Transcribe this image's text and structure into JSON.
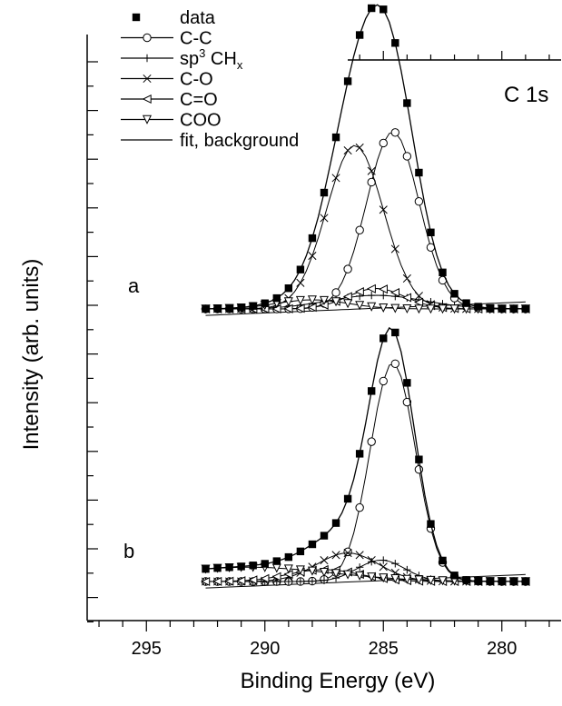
{
  "chart_data": {
    "type": "line",
    "region_label": "C 1s",
    "xlabel": "Binding Energy (eV)",
    "ylabel": "Intensity (arb. units)",
    "x_reversed": true,
    "xlim": [
      297.5,
      277.5
    ],
    "x_ticks": [
      {
        "value": 295,
        "label": "295"
      },
      {
        "value": 290,
        "label": "290"
      },
      {
        "value": 285,
        "label": "285"
      },
      {
        "value": 280,
        "label": "280"
      }
    ],
    "legend_position": "top-left",
    "legend": [
      {
        "name": "data",
        "marker": "square-filled"
      },
      {
        "name": "C-C",
        "marker": "circle"
      },
      {
        "name": "sp3 CHx",
        "display_main": "sp",
        "display_sup": "3",
        "display_rest": " CH",
        "display_sub": "x",
        "marker": "plus"
      },
      {
        "name": "C-O",
        "marker": "cross"
      },
      {
        "name": "C=O",
        "marker": "triangle-left"
      },
      {
        "name": "COO",
        "marker": "triangle-down"
      },
      {
        "name": "fit, background",
        "marker": "none"
      }
    ],
    "panels": [
      {
        "label": "a",
        "offset": 0.0,
        "background": 0.0,
        "components": [
          {
            "name": "C-C",
            "center": 284.6,
            "height": 0.78,
            "width": 1.1
          },
          {
            "name": "C-O",
            "center": 286.2,
            "height": 0.72,
            "width": 1.2
          },
          {
            "name": "sp3 CHx",
            "center": 285.3,
            "height": 0.06,
            "width": 2.0
          },
          {
            "name": "C=O",
            "center": 285.3,
            "height": 0.09,
            "width": 1.2
          },
          {
            "name": "COO",
            "center": 288.0,
            "height": 0.04,
            "width": 1.5
          }
        ]
      },
      {
        "label": "b",
        "offset": 0.0,
        "background": 0.0,
        "components": [
          {
            "name": "C-C",
            "center": 284.6,
            "height": 0.92,
            "width": 0.95
          },
          {
            "name": "C-O",
            "center": 286.5,
            "height": 0.12,
            "width": 1.3
          },
          {
            "name": "sp3 CHx",
            "center": 285.1,
            "height": 0.09,
            "width": 1.0
          },
          {
            "name": "C=O",
            "center": 287.5,
            "height": 0.05,
            "width": 1.5
          },
          {
            "name": "COO",
            "center": 290.7,
            "height": 0.06,
            "width": 3.5
          }
        ]
      }
    ]
  }
}
